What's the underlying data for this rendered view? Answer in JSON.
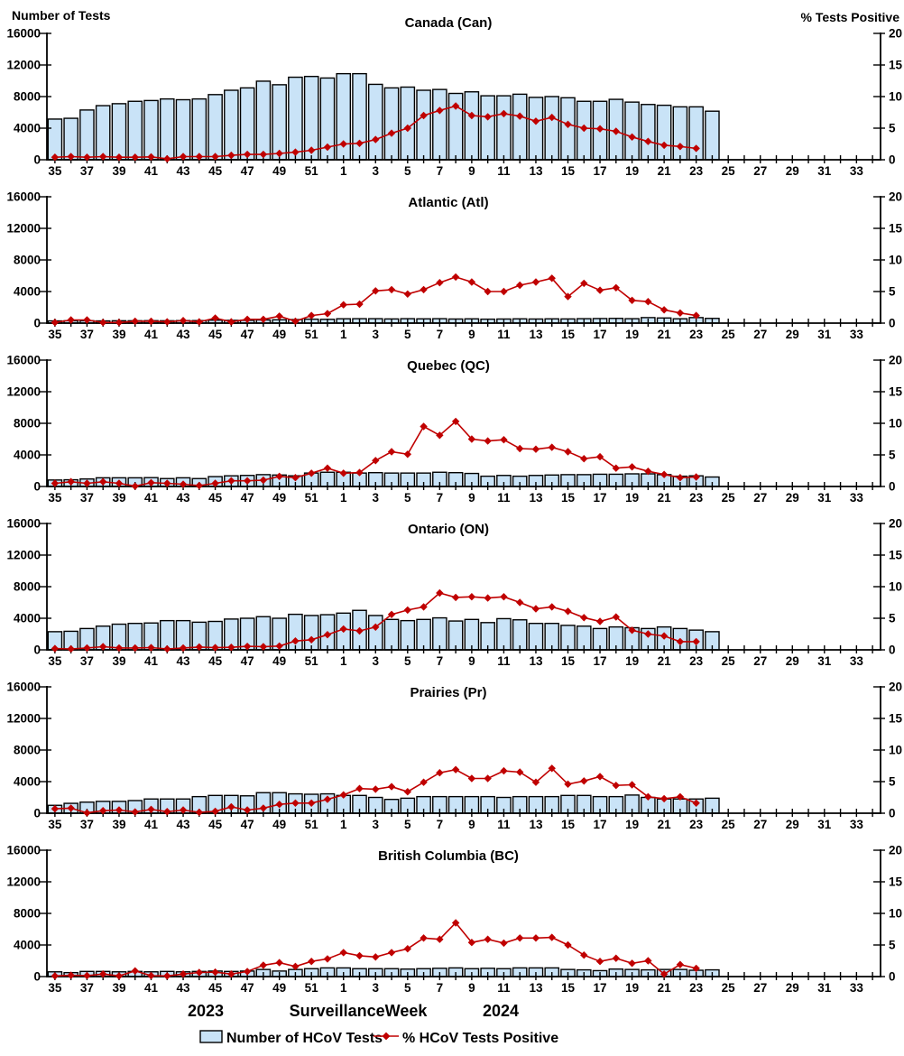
{
  "header": {
    "left_axis_title": "Number of Tests",
    "right_axis_title": "% Tests Positive"
  },
  "footer": {
    "year_left": "2023",
    "axis_title_word1": "Surveillance",
    "axis_title_word2": "Week",
    "year_right": "2024"
  },
  "legend": {
    "bars_label": "Number of HCoV Tests",
    "line_label": "% HCoV Tests Positive"
  },
  "colors": {
    "bar_fill": "#C9E3F7",
    "bar_border": "#000000",
    "line": "#C00000"
  },
  "axes": {
    "left_max": 16000,
    "right_max": 20,
    "left_ticks": [
      0,
      4000,
      8000,
      12000,
      16000
    ],
    "right_ticks": [
      0,
      5,
      10,
      15,
      20
    ],
    "weeks": [
      "35",
      "36",
      "37",
      "38",
      "39",
      "40",
      "41",
      "42",
      "43",
      "44",
      "45",
      "46",
      "47",
      "48",
      "49",
      "50",
      "51",
      "52",
      "1",
      "2",
      "3",
      "4",
      "5",
      "6",
      "7",
      "8",
      "9",
      "10",
      "11",
      "12",
      "13",
      "14",
      "15",
      "16",
      "17",
      "18",
      "19",
      "20",
      "21",
      "22",
      "23",
      "24",
      "25",
      "26",
      "27",
      "28",
      "29",
      "30",
      "31",
      "32",
      "33",
      "34"
    ],
    "label_every": 2
  },
  "chart_data": [
    {
      "type": "bar+line",
      "title": "Canada (Can)",
      "bar_series": "Number of HCoV Tests",
      "line_series": "% HCoV Tests Positive",
      "bars": [
        5150,
        5250,
        6300,
        6850,
        7100,
        7400,
        7500,
        7700,
        7600,
        7700,
        8250,
        8800,
        9100,
        9950,
        9500,
        10450,
        10550,
        10350,
        10900,
        10900,
        9550,
        9100,
        9200,
        8800,
        8900,
        8400,
        8600,
        8100,
        8100,
        8300,
        7900,
        8000,
        7850,
        7400,
        7400,
        7650,
        7300,
        7000,
        6900,
        6700,
        6700,
        6150
      ],
      "line": [
        0.4,
        0.5,
        0.4,
        0.5,
        0.4,
        0.4,
        0.45,
        0.15,
        0.5,
        0.5,
        0.5,
        0.7,
        0.85,
        0.85,
        1.0,
        1.2,
        1.5,
        2.0,
        2.5,
        2.6,
        3.2,
        4.2,
        5.0,
        7.0,
        7.8,
        8.5,
        7.0,
        6.8,
        7.3,
        6.9,
        6.1,
        6.7,
        5.6,
        5.0,
        4.9,
        4.5,
        3.6,
        2.9,
        2.3,
        2.1,
        1.8
      ]
    },
    {
      "type": "bar+line",
      "title": "Atlantic (Atl)",
      "bar_series": "Number of HCoV Tests",
      "line_series": "% HCoV Tests Positive",
      "bars": [
        280,
        300,
        300,
        280,
        300,
        300,
        310,
        300,
        320,
        320,
        380,
        350,
        350,
        400,
        420,
        450,
        500,
        480,
        550,
        560,
        560,
        530,
        560,
        540,
        560,
        520,
        540,
        500,
        520,
        540,
        520,
        540,
        530,
        560,
        580,
        600,
        560,
        700,
        650,
        550,
        700,
        600
      ],
      "line": [
        0.1,
        0.5,
        0.5,
        0.1,
        0.1,
        0.3,
        0.3,
        0.2,
        0.4,
        0.2,
        0.8,
        0.2,
        0.6,
        0.6,
        1.1,
        0.3,
        1.2,
        1.5,
        2.9,
        3.0,
        5.1,
        5.3,
        4.6,
        5.3,
        6.4,
        7.3,
        6.5,
        5.0,
        5.0,
        6.0,
        6.5,
        7.1,
        4.2,
        6.3,
        5.2,
        5.6,
        3.6,
        3.4,
        2.1,
        1.6,
        1.2
      ]
    },
    {
      "type": "bar+line",
      "title": "Quebec (QC)",
      "bar_series": "Number of HCoV Tests",
      "line_series": "% HCoV Tests Positive",
      "bars": [
        820,
        850,
        950,
        1100,
        1100,
        1100,
        1120,
        1000,
        1100,
        1000,
        1250,
        1350,
        1400,
        1500,
        1450,
        1350,
        1700,
        1800,
        1800,
        1700,
        1750,
        1700,
        1700,
        1700,
        1800,
        1750,
        1650,
        1300,
        1400,
        1300,
        1400,
        1450,
        1500,
        1500,
        1550,
        1550,
        1600,
        1600,
        1500,
        1300,
        1350,
        1200
      ],
      "line": [
        0.5,
        0.75,
        0.5,
        0.75,
        0.5,
        0.05,
        0.6,
        0.5,
        0.35,
        0.15,
        0.5,
        0.9,
        0.9,
        1.0,
        1.6,
        1.4,
        2.1,
        2.9,
        2.1,
        2.2,
        4.1,
        5.5,
        5.1,
        9.5,
        8.1,
        10.3,
        7.5,
        7.2,
        7.4,
        6.0,
        5.9,
        6.2,
        5.5,
        4.4,
        4.7,
        2.9,
        3.1,
        2.4,
        1.9,
        1.4,
        1.5
      ]
    },
    {
      "type": "bar+line",
      "title": "Ontario (ON)",
      "bar_series": "Number of HCoV Tests",
      "line_series": "% HCoV Tests Positive",
      "bars": [
        2300,
        2350,
        2700,
        3000,
        3250,
        3350,
        3400,
        3700,
        3700,
        3500,
        3600,
        3900,
        4000,
        4200,
        4000,
        4500,
        4350,
        4450,
        4650,
        5000,
        4350,
        3850,
        3700,
        3850,
        4050,
        3650,
        3850,
        3450,
        3950,
        3800,
        3350,
        3350,
        3100,
        3000,
        2700,
        2900,
        2800,
        2700,
        2900,
        2700,
        2500,
        2300
      ],
      "line": [
        0.2,
        0.15,
        0.3,
        0.5,
        0.3,
        0.3,
        0.35,
        0.15,
        0.3,
        0.45,
        0.35,
        0.4,
        0.55,
        0.5,
        0.6,
        1.4,
        1.6,
        2.4,
        3.3,
        3.0,
        3.6,
        5.6,
        6.3,
        6.8,
        9.0,
        8.3,
        8.4,
        8.2,
        8.4,
        7.5,
        6.5,
        6.8,
        6.1,
        5.1,
        4.5,
        5.2,
        3.1,
        2.5,
        2.2,
        1.3,
        1.3
      ]
    },
    {
      "type": "bar+line",
      "title": "Prairies (Pr)",
      "bar_series": "Number of HCoV Tests",
      "line_series": "% HCoV Tests Positive",
      "bars": [
        1000,
        1250,
        1400,
        1500,
        1500,
        1600,
        1800,
        1800,
        1800,
        2100,
        2250,
        2250,
        2200,
        2600,
        2600,
        2450,
        2400,
        2450,
        2250,
        2250,
        2000,
        1750,
        1900,
        2100,
        2100,
        2100,
        2100,
        2100,
        2000,
        2100,
        2100,
        2100,
        2250,
        2250,
        2100,
        2100,
        2300,
        2000,
        1800,
        1800,
        1800,
        1900
      ],
      "line": [
        0.7,
        0.8,
        0.05,
        0.4,
        0.5,
        0.2,
        0.6,
        0.25,
        0.5,
        0.15,
        0.3,
        1.0,
        0.5,
        0.8,
        1.4,
        1.6,
        1.6,
        2.2,
        2.9,
        3.9,
        3.8,
        4.2,
        3.4,
        4.9,
        6.4,
        6.9,
        5.5,
        5.5,
        6.7,
        6.5,
        4.9,
        7.1,
        4.6,
        5.1,
        5.8,
        4.4,
        4.5,
        2.6,
        2.3,
        2.6,
        1.6
      ]
    },
    {
      "type": "bar+line",
      "title": "British Columbia (BC)",
      "bar_series": "Number of HCoV Tests",
      "line_series": "% HCoV Tests Positive",
      "bars": [
        600,
        500,
        650,
        650,
        600,
        650,
        600,
        650,
        600,
        650,
        700,
        650,
        700,
        900,
        700,
        900,
        1000,
        1100,
        1100,
        1000,
        1000,
        1000,
        950,
        1000,
        1050,
        1100,
        1000,
        1050,
        1000,
        1100,
        1100,
        1100,
        900,
        850,
        750,
        950,
        900,
        850,
        900,
        900,
        800,
        850
      ],
      "line": [
        0.1,
        0.2,
        0.15,
        0.4,
        0.1,
        0.9,
        0.15,
        0.1,
        0.4,
        0.65,
        0.7,
        0.4,
        0.8,
        1.8,
        2.2,
        1.6,
        2.4,
        2.8,
        3.8,
        3.3,
        3.1,
        3.8,
        4.4,
        6.1,
        5.9,
        8.5,
        5.4,
        5.9,
        5.3,
        6.1,
        6.1,
        6.2,
        5.0,
        3.4,
        2.4,
        2.9,
        2.1,
        2.5,
        0.4,
        1.9,
        1.3
      ]
    }
  ]
}
